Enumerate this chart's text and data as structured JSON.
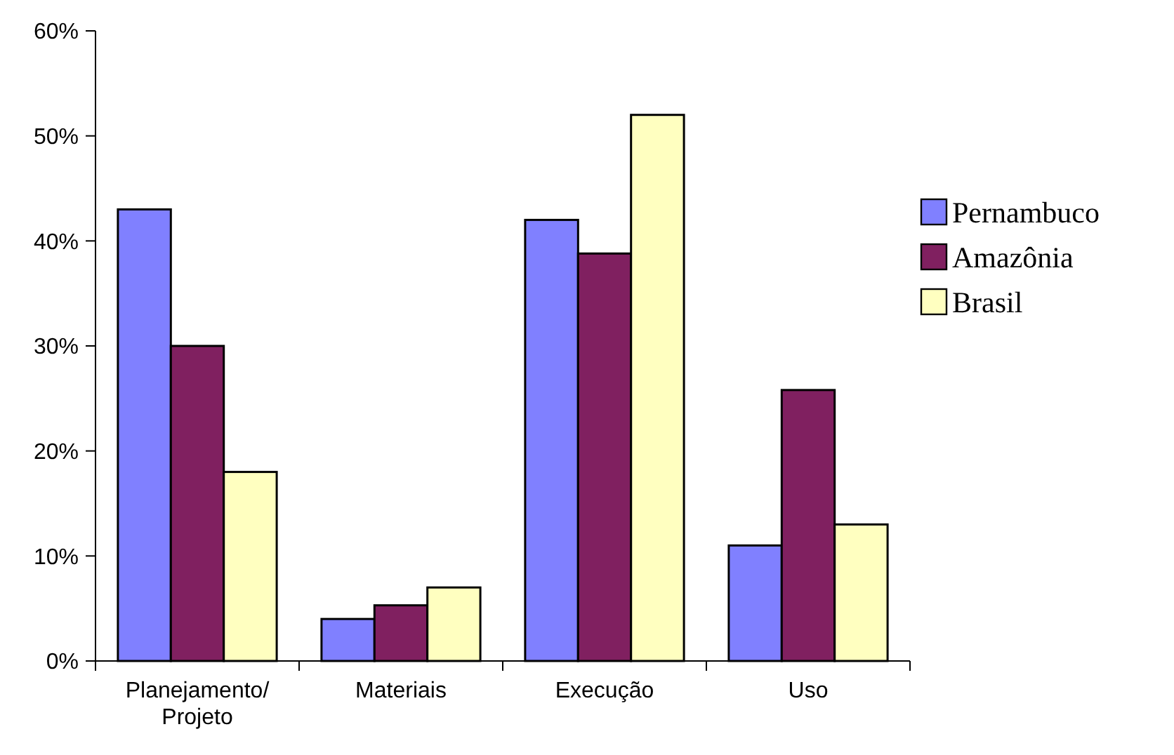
{
  "chart_data": {
    "type": "bar",
    "categories": [
      "Planejamento/ Projeto",
      "Materiais",
      "Execução",
      "Uso"
    ],
    "series": [
      {
        "name": "Pernambuco",
        "color": "#8080ff",
        "values": [
          43,
          4,
          42,
          11
        ]
      },
      {
        "name": "Amazônia",
        "color": "#802060",
        "values": [
          30,
          5.3,
          38.8,
          25.8
        ]
      },
      {
        "name": "Brasil",
        "color": "#ffffc0",
        "values": [
          18,
          7,
          52,
          13
        ]
      }
    ],
    "ylim": [
      0,
      60
    ],
    "yticks": [
      {
        "value": 0,
        "label": "0%"
      },
      {
        "value": 10,
        "label": "10%"
      },
      {
        "value": 20,
        "label": "20%"
      },
      {
        "value": 30,
        "label": "30%"
      },
      {
        "value": 40,
        "label": "40%"
      },
      {
        "value": 50,
        "label": "50%"
      },
      {
        "value": 60,
        "label": "60%"
      }
    ],
    "grid": false,
    "legend": "right"
  }
}
